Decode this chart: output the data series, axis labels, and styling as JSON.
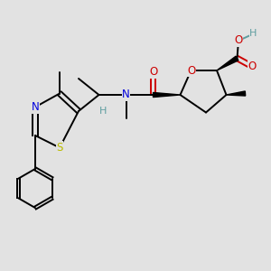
{
  "bg_color": "#e2e2e2",
  "bond_color": "#000000",
  "atom_colors": {
    "O": "#cc0000",
    "N": "#0000dd",
    "S": "#bbbb00",
    "H": "#5f9ea0",
    "C": "#000000"
  },
  "font_size": 8.5,
  "lw": 1.4
}
